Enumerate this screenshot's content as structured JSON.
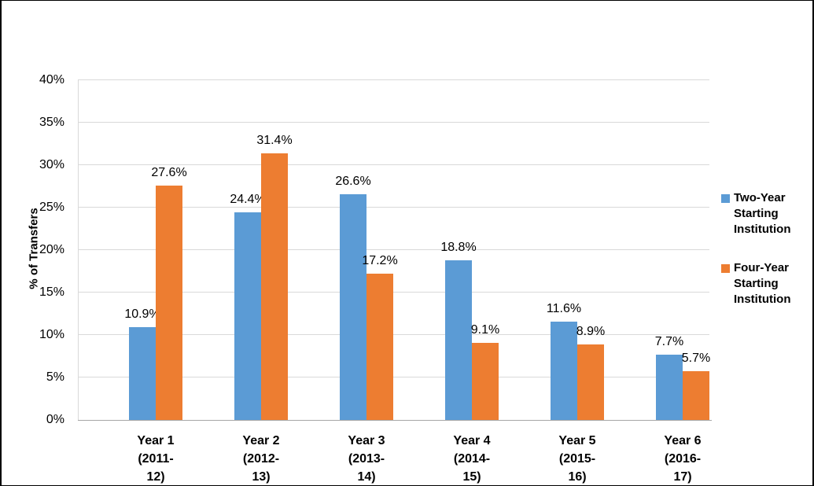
{
  "chart_data": {
    "type": "bar",
    "title": "",
    "xlabel": "",
    "ylabel": "% of Transfers",
    "ylim": [
      0,
      40
    ],
    "grid": true,
    "legend_position": "right",
    "ytick_labels": [
      "0%",
      "5%",
      "10%",
      "15%",
      "20%",
      "25%",
      "30%",
      "35%",
      "40%"
    ],
    "ytick_values": [
      0,
      5,
      10,
      15,
      20,
      25,
      30,
      35,
      40
    ],
    "categories": [
      "Year 1\n(2011-\n12)",
      "Year 2\n(2012-\n13)",
      "Year 3\n(2013-\n14)",
      "Year 4\n(2014-\n15)",
      "Year 5\n(2015-\n16)",
      "Year 6\n(2016-\n17)"
    ],
    "series": [
      {
        "name": "Two-Year Starting Institution",
        "legend_label": "Two-Year\nStarting\nInstitution",
        "color": "#5B9BD5",
        "values": [
          10.9,
          24.4,
          26.6,
          18.8,
          11.6,
          7.7
        ],
        "data_labels": [
          "10.9%",
          "24.4%",
          "26.6%",
          "18.8%",
          "11.6%",
          "7.7%"
        ]
      },
      {
        "name": "Four-Year Starting Institution",
        "legend_label": "Four-Year\nStarting\nInstitution",
        "color": "#ED7D31",
        "values": [
          27.6,
          31.4,
          17.2,
          9.1,
          8.9,
          5.7
        ],
        "data_labels": [
          "27.6%",
          "31.4%",
          "17.2%",
          "9.1%",
          "8.9%",
          "5.7%"
        ]
      }
    ],
    "colors": {
      "gridline": "#d9d9d9",
      "axis_line": "#a6a6a6",
      "text": "#000000"
    }
  }
}
